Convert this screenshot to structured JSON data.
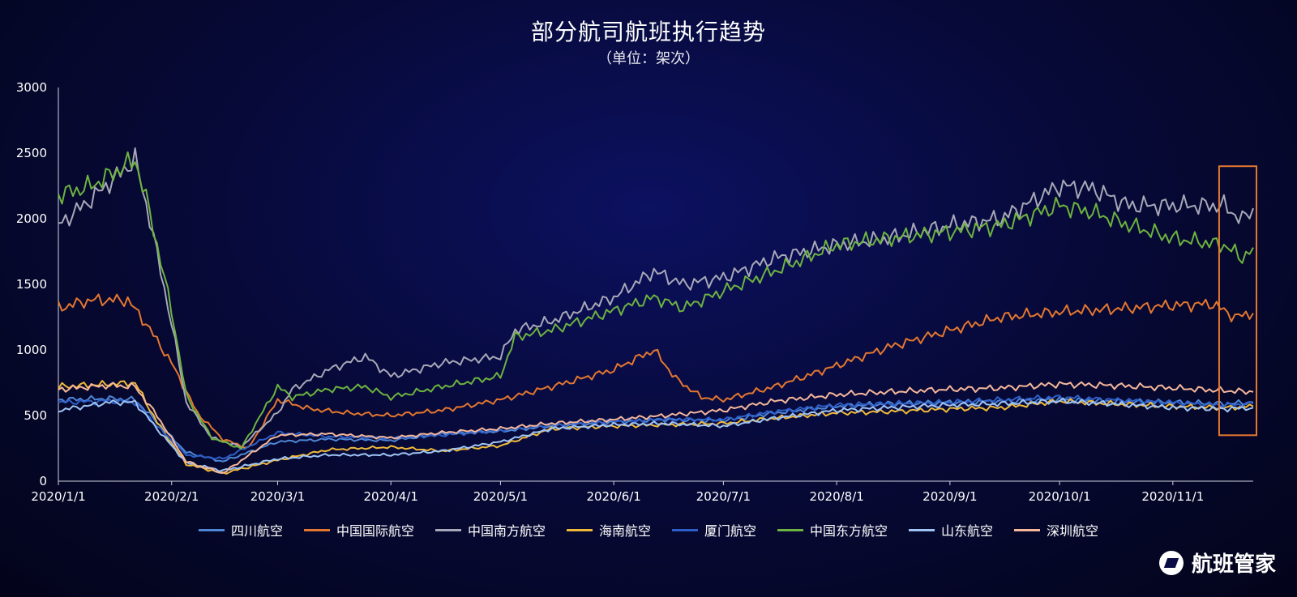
{
  "header": {
    "title": "部分航司航班执行趋势",
    "subtitle": "（单位：架次）"
  },
  "brand": {
    "name": "航班管家"
  },
  "chart_data": {
    "type": "line",
    "title": "部分航司航班执行趋势",
    "subtitle": "（单位：架次）",
    "ylim": [
      0,
      3000
    ],
    "yticks": [
      0,
      500,
      1000,
      1500,
      2000,
      2500,
      3000
    ],
    "xlim": [
      "2020-01-01",
      "2020-11-23"
    ],
    "xticks": [
      "2020/1/1",
      "2020/2/1",
      "2020/3/1",
      "2020/4/1",
      "2020/5/1",
      "2020/6/1",
      "2020/7/1",
      "2020/8/1",
      "2020/9/1",
      "2020/10/1",
      "2020/11/1"
    ],
    "legend_position": "bottom",
    "grid": false,
    "highlight_range": [
      "2020-11-15",
      "2020-11-23"
    ],
    "series": [
      {
        "name": "四川航空",
        "color": "#4f86d6",
        "x": [
          "2020-01-01",
          "2020-01-15",
          "2020-01-22",
          "2020-01-28",
          "2020-02-05",
          "2020-02-15",
          "2020-03-01",
          "2020-03-15",
          "2020-04-01",
          "2020-04-15",
          "2020-05-01",
          "2020-05-15",
          "2020-06-01",
          "2020-06-15",
          "2020-07-01",
          "2020-07-15",
          "2020-08-01",
          "2020-08-15",
          "2020-09-01",
          "2020-09-15",
          "2020-10-01",
          "2020-10-15",
          "2020-11-01",
          "2020-11-15",
          "2020-11-23"
        ],
        "y": [
          620,
          630,
          620,
          450,
          220,
          150,
          300,
          320,
          310,
          360,
          380,
          420,
          450,
          470,
          460,
          520,
          570,
          590,
          600,
          610,
          620,
          610,
          600,
          590,
          600
        ]
      },
      {
        "name": "中国国际航空",
        "color": "#e4772f",
        "x": [
          "2020-01-01",
          "2020-01-10",
          "2020-01-20",
          "2020-01-25",
          "2020-02-01",
          "2020-02-08",
          "2020-02-15",
          "2020-02-22",
          "2020-03-01",
          "2020-03-10",
          "2020-03-20",
          "2020-04-01",
          "2020-04-15",
          "2020-05-01",
          "2020-05-15",
          "2020-06-01",
          "2020-06-12",
          "2020-06-18",
          "2020-06-25",
          "2020-07-01",
          "2020-07-15",
          "2020-08-01",
          "2020-08-15",
          "2020-09-01",
          "2020-09-15",
          "2020-10-01",
          "2020-10-15",
          "2020-11-01",
          "2020-11-12",
          "2020-11-18",
          "2020-11-23"
        ],
        "y": [
          1320,
          1380,
          1380,
          1200,
          900,
          520,
          320,
          250,
          620,
          550,
          520,
          500,
          540,
          620,
          720,
          850,
          1000,
          780,
          640,
          620,
          720,
          880,
          1020,
          1150,
          1250,
          1290,
          1310,
          1340,
          1350,
          1250,
          1280
        ]
      },
      {
        "name": "中国南方航空",
        "color": "#a8a8b8",
        "x": [
          "2020-01-01",
          "2020-01-10",
          "2020-01-18",
          "2020-01-22",
          "2020-01-26",
          "2020-02-01",
          "2020-02-05",
          "2020-02-12",
          "2020-02-20",
          "2020-03-01",
          "2020-03-05",
          "2020-03-15",
          "2020-03-25",
          "2020-04-01",
          "2020-04-15",
          "2020-05-01",
          "2020-05-05",
          "2020-05-15",
          "2020-06-01",
          "2020-06-12",
          "2020-06-20",
          "2020-07-01",
          "2020-07-15",
          "2020-08-01",
          "2020-08-15",
          "2020-09-01",
          "2020-09-15",
          "2020-10-01",
          "2020-10-10",
          "2020-10-20",
          "2020-11-01",
          "2020-11-15",
          "2020-11-20",
          "2020-11-23"
        ],
        "y": [
          1950,
          2150,
          2350,
          2450,
          2000,
          1200,
          600,
          330,
          260,
          520,
          700,
          850,
          950,
          800,
          900,
          950,
          1150,
          1220,
          1400,
          1600,
          1500,
          1550,
          1700,
          1800,
          1850,
          1950,
          2000,
          2250,
          2230,
          2100,
          2100,
          2100,
          1990,
          2080
        ]
      },
      {
        "name": "海南航空",
        "color": "#f0b93a",
        "x": [
          "2020-01-01",
          "2020-01-15",
          "2020-01-22",
          "2020-01-28",
          "2020-02-05",
          "2020-02-15",
          "2020-03-01",
          "2020-03-15",
          "2020-04-01",
          "2020-04-15",
          "2020-05-01",
          "2020-05-15",
          "2020-06-01",
          "2020-06-15",
          "2020-07-01",
          "2020-07-15",
          "2020-08-01",
          "2020-08-15",
          "2020-09-01",
          "2020-09-15",
          "2020-10-01",
          "2020-10-15",
          "2020-11-01",
          "2020-11-15",
          "2020-11-23"
        ],
        "y": [
          720,
          740,
          750,
          450,
          130,
          60,
          160,
          240,
          260,
          230,
          270,
          400,
          420,
          430,
          440,
          480,
          520,
          530,
          550,
          560,
          610,
          590,
          570,
          560,
          570
        ]
      },
      {
        "name": "厦门航空",
        "color": "#2e5fc8",
        "x": [
          "2020-01-01",
          "2020-01-15",
          "2020-01-22",
          "2020-01-28",
          "2020-02-05",
          "2020-02-15",
          "2020-03-01",
          "2020-03-15",
          "2020-04-01",
          "2020-04-15",
          "2020-05-01",
          "2020-05-15",
          "2020-06-01",
          "2020-06-15",
          "2020-07-01",
          "2020-07-15",
          "2020-08-01",
          "2020-08-15",
          "2020-09-01",
          "2020-09-15",
          "2020-10-01",
          "2020-10-15",
          "2020-11-01",
          "2020-11-15",
          "2020-11-23"
        ],
        "y": [
          600,
          610,
          600,
          420,
          200,
          170,
          370,
          340,
          330,
          350,
          390,
          430,
          460,
          470,
          470,
          530,
          580,
          590,
          600,
          620,
          640,
          620,
          600,
          580,
          590
        ]
      },
      {
        "name": "中国东方航空",
        "color": "#6db33f",
        "x": [
          "2020-01-01",
          "2020-01-10",
          "2020-01-18",
          "2020-01-22",
          "2020-01-26",
          "2020-02-01",
          "2020-02-05",
          "2020-02-12",
          "2020-02-20",
          "2020-03-01",
          "2020-03-05",
          "2020-03-15",
          "2020-03-25",
          "2020-04-01",
          "2020-04-15",
          "2020-05-01",
          "2020-05-05",
          "2020-05-15",
          "2020-06-01",
          "2020-06-12",
          "2020-06-20",
          "2020-07-01",
          "2020-07-15",
          "2020-08-01",
          "2020-08-15",
          "2020-09-01",
          "2020-09-15",
          "2020-10-01",
          "2020-10-10",
          "2020-10-20",
          "2020-11-01",
          "2020-11-15",
          "2020-11-20",
          "2020-11-23"
        ],
        "y": [
          2180,
          2250,
          2380,
          2450,
          2050,
          1300,
          650,
          330,
          250,
          720,
          640,
          700,
          720,
          640,
          720,
          800,
          1100,
          1150,
          1300,
          1400,
          1320,
          1450,
          1600,
          1800,
          1850,
          1900,
          1950,
          2100,
          2050,
          1950,
          1850,
          1800,
          1700,
          1780
        ]
      },
      {
        "name": "山东航空",
        "color": "#9ec4f5",
        "x": [
          "2020-01-01",
          "2020-01-15",
          "2020-01-22",
          "2020-01-28",
          "2020-02-05",
          "2020-02-15",
          "2020-03-01",
          "2020-03-15",
          "2020-04-01",
          "2020-04-15",
          "2020-05-01",
          "2020-05-15",
          "2020-06-01",
          "2020-06-15",
          "2020-07-01",
          "2020-07-15",
          "2020-08-01",
          "2020-08-15",
          "2020-09-01",
          "2020-09-15",
          "2020-10-01",
          "2020-10-15",
          "2020-11-01",
          "2020-11-15",
          "2020-11-23"
        ],
        "y": [
          540,
          600,
          600,
          400,
          140,
          80,
          170,
          200,
          200,
          230,
          300,
          400,
          430,
          440,
          420,
          480,
          540,
          560,
          580,
          590,
          610,
          590,
          560,
          550,
          560
        ]
      },
      {
        "name": "深圳航空",
        "color": "#f6b79a",
        "x": [
          "2020-01-01",
          "2020-01-15",
          "2020-01-22",
          "2020-01-28",
          "2020-02-05",
          "2020-02-15",
          "2020-03-01",
          "2020-03-15",
          "2020-04-01",
          "2020-04-15",
          "2020-05-01",
          "2020-05-15",
          "2020-06-01",
          "2020-06-15",
          "2020-07-01",
          "2020-07-15",
          "2020-08-01",
          "2020-08-15",
          "2020-09-01",
          "2020-09-15",
          "2020-10-01",
          "2020-10-15",
          "2020-11-01",
          "2020-11-15",
          "2020-11-23"
        ],
        "y": [
          700,
          730,
          720,
          500,
          150,
          60,
          350,
          360,
          330,
          370,
          400,
          440,
          470,
          500,
          540,
          610,
          660,
          680,
          700,
          710,
          740,
          730,
          710,
          690,
          680
        ]
      }
    ]
  }
}
